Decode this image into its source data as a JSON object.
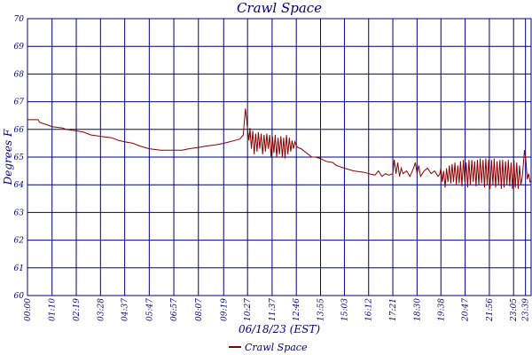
{
  "chart_data": {
    "type": "line",
    "title": "Crawl Space",
    "xlabel": "06/18/23 (EST)",
    "ylabel": "Degrees F",
    "ylim": [
      60,
      70
    ],
    "yticks": [
      60,
      61,
      62,
      63,
      64,
      65,
      66,
      67,
      68,
      69,
      70
    ],
    "xlim": [
      0,
      1435
    ],
    "xtick_labels": [
      "00:00",
      "01:10",
      "02:19",
      "03:28",
      "04:37",
      "05:47",
      "06:57",
      "08:07",
      "09:19",
      "10:27",
      "11:37",
      "12:46",
      "13:55",
      "15:03",
      "16:12",
      "17:21",
      "18:30",
      "19:38",
      "20:47",
      "21:56",
      "23:05",
      "23:39"
    ],
    "xtick_minutes": [
      0,
      70,
      139,
      208,
      277,
      347,
      417,
      487,
      559,
      627,
      697,
      766,
      835,
      903,
      972,
      1041,
      1110,
      1178,
      1247,
      1316,
      1385,
      1419
    ],
    "grid": true,
    "legend_position": "bottom-center",
    "line_color": "#8b0000",
    "grid_color": "#000080",
    "series": [
      {
        "name": "Crawl Space",
        "x": [
          0,
          30,
          35,
          60,
          70,
          100,
          110,
          139,
          160,
          180,
          208,
          240,
          260,
          277,
          300,
          320,
          347,
          380,
          417,
          440,
          460,
          487,
          510,
          540,
          560,
          590,
          605,
          615,
          618,
          621,
          624,
          627,
          631,
          634,
          638,
          642,
          646,
          650,
          654,
          658,
          662,
          666,
          670,
          674,
          678,
          682,
          686,
          690,
          694,
          698,
          702,
          706,
          710,
          714,
          718,
          722,
          726,
          730,
          734,
          738,
          742,
          746,
          750,
          754,
          758,
          762,
          766,
          770,
          780,
          790,
          800,
          810,
          820,
          835,
          850,
          870,
          880,
          903,
          930,
          960,
          972,
          990,
          1000,
          1010,
          1020,
          1030,
          1041,
          1045,
          1050,
          1055,
          1060,
          1065,
          1070,
          1080,
          1090,
          1100,
          1105,
          1110,
          1115,
          1120,
          1130,
          1140,
          1150,
          1160,
          1170,
          1175,
          1178,
          1182,
          1186,
          1190,
          1194,
          1198,
          1202,
          1206,
          1210,
          1214,
          1218,
          1222,
          1226,
          1230,
          1234,
          1238,
          1242,
          1246,
          1250,
          1254,
          1258,
          1262,
          1266,
          1270,
          1274,
          1278,
          1282,
          1286,
          1290,
          1294,
          1298,
          1302,
          1306,
          1310,
          1314,
          1318,
          1322,
          1326,
          1330,
          1334,
          1338,
          1342,
          1346,
          1350,
          1354,
          1358,
          1362,
          1366,
          1370,
          1374,
          1378,
          1382,
          1386,
          1390,
          1394,
          1398,
          1402,
          1406,
          1410,
          1412,
          1416,
          1420,
          1424,
          1428,
          1432,
          1435
        ],
        "values": [
          66.35,
          66.35,
          66.25,
          66.15,
          66.1,
          66.05,
          66.0,
          65.95,
          65.9,
          65.8,
          65.75,
          65.7,
          65.6,
          65.55,
          65.5,
          65.4,
          65.3,
          65.25,
          65.25,
          65.25,
          65.3,
          65.35,
          65.4,
          65.45,
          65.5,
          65.6,
          65.65,
          65.8,
          66.3,
          66.75,
          66.4,
          66.0,
          65.6,
          66.05,
          65.3,
          65.95,
          65.1,
          65.85,
          65.2,
          65.9,
          65.3,
          65.85,
          65.1,
          65.8,
          65.2,
          65.85,
          65.3,
          65.8,
          65.0,
          65.75,
          65.15,
          65.8,
          65.0,
          65.7,
          65.1,
          65.75,
          65.0,
          65.7,
          64.95,
          65.8,
          65.1,
          65.7,
          65.2,
          65.6,
          65.3,
          65.55,
          65.4,
          65.35,
          65.3,
          65.2,
          65.1,
          65.0,
          65.0,
          64.95,
          64.85,
          64.8,
          64.7,
          64.6,
          64.5,
          64.45,
          64.4,
          64.35,
          64.5,
          64.3,
          64.4,
          64.35,
          64.4,
          64.9,
          64.4,
          64.8,
          64.3,
          64.6,
          64.4,
          64.5,
          64.3,
          64.6,
          64.8,
          64.4,
          64.7,
          64.3,
          64.5,
          64.6,
          64.4,
          64.5,
          64.3,
          64.4,
          64.6,
          64.1,
          64.5,
          63.9,
          64.6,
          64.1,
          64.7,
          64.05,
          64.75,
          64.1,
          64.8,
          64.0,
          64.7,
          64.05,
          64.85,
          63.95,
          64.9,
          64.1,
          64.8,
          63.9,
          64.9,
          64.0,
          64.9,
          64.1,
          64.85,
          63.95,
          64.9,
          64.0,
          64.95,
          64.05,
          64.9,
          63.9,
          64.95,
          64.0,
          64.9,
          63.85,
          64.9,
          64.0,
          64.95,
          63.9,
          64.85,
          64.0,
          64.9,
          63.85,
          64.9,
          63.9,
          64.85,
          64.0,
          64.9,
          63.95,
          64.8,
          63.85,
          64.9,
          63.9,
          64.8,
          63.85,
          64.7,
          64.0,
          64.3,
          64.6,
          65.25,
          64.9,
          64.2,
          64.4,
          64.1,
          64.15
        ]
      }
    ]
  }
}
